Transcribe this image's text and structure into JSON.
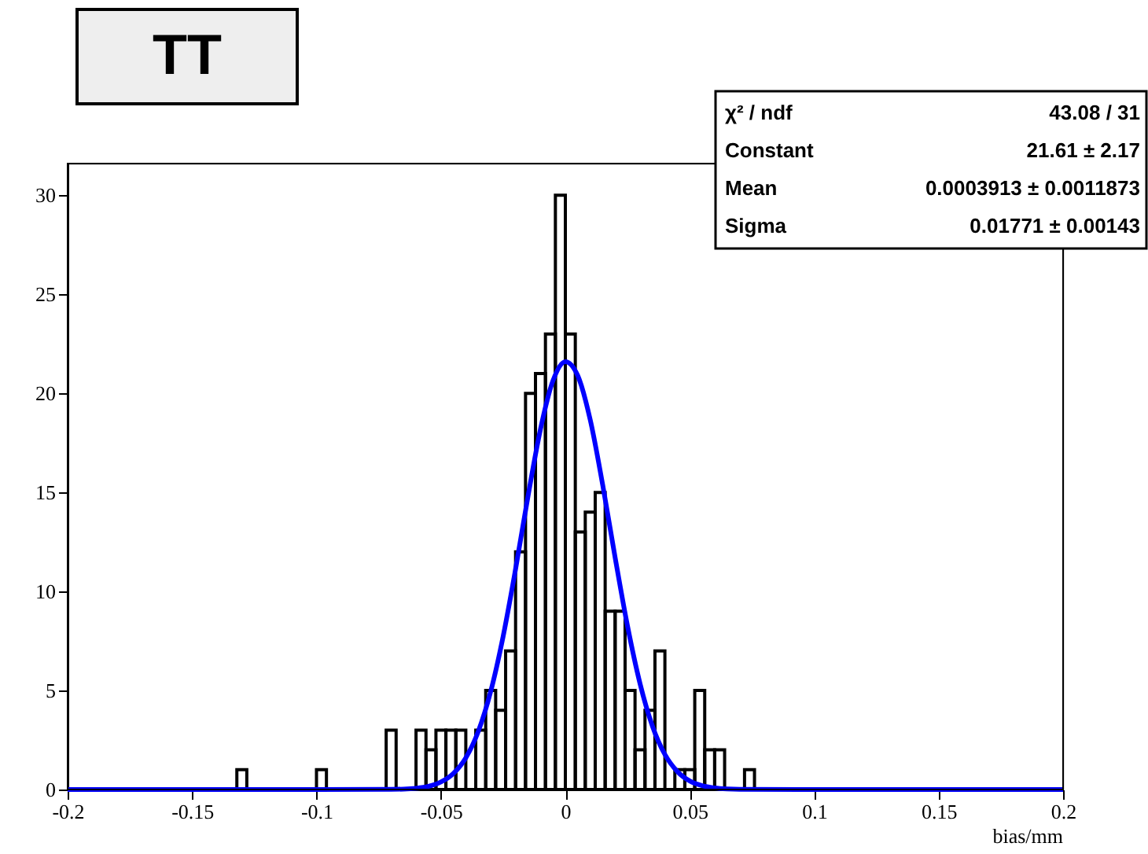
{
  "chart_data": {
    "type": "histogram",
    "title": "TT",
    "xlabel": "bias/mm",
    "bins": [
      -0.2,
      -0.196,
      -0.192,
      -0.188,
      -0.184,
      -0.18,
      -0.176,
      -0.172,
      -0.168,
      -0.164,
      -0.16,
      -0.156,
      -0.152,
      -0.148,
      -0.144,
      -0.14,
      -0.136,
      -0.132,
      -0.128,
      -0.124,
      -0.12,
      -0.116,
      -0.112,
      -0.108,
      -0.104,
      -0.1,
      -0.096,
      -0.092,
      -0.088,
      -0.084,
      -0.08,
      -0.076,
      -0.072,
      -0.068,
      -0.064,
      -0.06,
      -0.056,
      -0.052,
      -0.048,
      -0.044,
      -0.04,
      -0.036,
      -0.032,
      -0.028,
      -0.024,
      -0.02,
      -0.016,
      -0.012,
      -0.008,
      -0.004,
      0,
      0.004,
      0.008,
      0.012,
      0.016,
      0.02,
      0.024,
      0.028,
      0.032,
      0.036,
      0.04,
      0.044,
      0.048,
      0.052,
      0.056,
      0.06,
      0.064,
      0.068,
      0.072,
      0.076,
      0.08,
      0.084,
      0.088,
      0.092,
      0.096,
      0.1,
      0.104,
      0.108,
      0.112,
      0.116,
      0.12,
      0.124,
      0.128,
      0.132,
      0.136,
      0.14,
      0.144,
      0.148,
      0.152,
      0.156,
      0.16,
      0.164,
      0.168,
      0.172,
      0.176,
      0.18,
      0.184,
      0.188,
      0.192,
      0.196,
      0.2
    ],
    "values": [
      0,
      0,
      0,
      0,
      0,
      0,
      0,
      0,
      0,
      0,
      0,
      0,
      0,
      0,
      0,
      0,
      0,
      1,
      0,
      0,
      0,
      0,
      0,
      0,
      0,
      1,
      0,
      0,
      0,
      0,
      0,
      0,
      3,
      0,
      0,
      3,
      2,
      3,
      3,
      3,
      0,
      3,
      5,
      4,
      7,
      12,
      20,
      21,
      23,
      30,
      23,
      13,
      14,
      15,
      9,
      9,
      5,
      2,
      4,
      7,
      0,
      1,
      1,
      5,
      2,
      2,
      0,
      0,
      1,
      0,
      0,
      0,
      0,
      0,
      0,
      0,
      0,
      0,
      0,
      0,
      0,
      0,
      0,
      0,
      0,
      0,
      0,
      0,
      0,
      0,
      0,
      0,
      0,
      0,
      0,
      0,
      0,
      0,
      0,
      0
    ],
    "color": "#000000",
    "series": [
      {
        "type": "line",
        "color": "#0000ff",
        "x": [
          -0.2,
          -0.1,
          -0.07,
          -0.065,
          -0.06,
          -0.055,
          -0.05,
          -0.045,
          -0.04,
          -0.035,
          -0.03,
          -0.025,
          -0.02,
          -0.015,
          -0.01,
          -0.005,
          0,
          0.005,
          0.01,
          0.015,
          0.02,
          0.025,
          0.03,
          0.035,
          0.04,
          0.045,
          0.05,
          0.055,
          0.06,
          0.065,
          0.07,
          0.1,
          0.2
        ],
        "values": [
          0,
          0,
          0.01,
          0.02,
          0.06,
          0.16,
          0.38,
          0.81,
          1.6,
          2.93,
          4.95,
          7.73,
          11.13,
          14.81,
          18.19,
          20.63,
          21.6,
          20.89,
          18.66,
          15.38,
          11.71,
          8.24,
          5.35,
          3.2,
          1.77,
          0.91,
          0.43,
          0.19,
          0.08,
          0.03,
          0.01,
          0,
          0
        ]
      }
    ],
    "annotations": [
      "χ² / ndf",
      "43.08 / 31",
      "Constant",
      "21.61 ± 2.17",
      "Mean",
      "0.0003913 ± 0.0011873",
      "Sigma",
      "0.01771 ± 0.00143"
    ],
    "xlim": [
      -0.2,
      0.2
    ],
    "xticks": [
      -0.2,
      -0.15,
      -0.1,
      -0.05,
      0,
      0.05,
      0.1,
      0.15,
      0.2
    ],
    "ylim": [
      0,
      31.6
    ],
    "yticks": [
      0,
      5,
      10,
      15,
      20,
      25,
      30
    ],
    "grid": false
  }
}
